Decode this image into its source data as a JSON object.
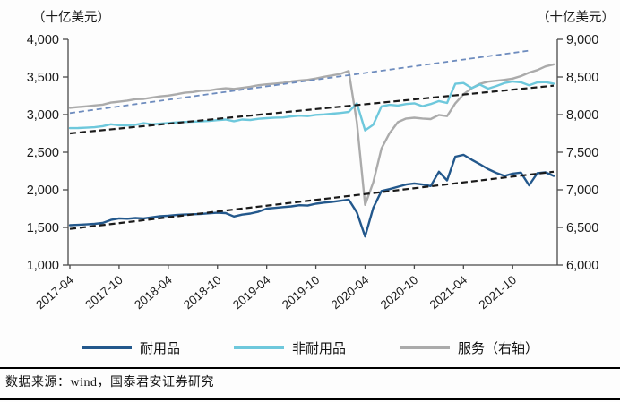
{
  "footer": {
    "source": "数据来源：wind，国泰君安证券研究"
  },
  "legend": [
    {
      "label": "耐用品",
      "color": "#23588c"
    },
    {
      "label": "非耐用品",
      "color": "#6ec8dc"
    },
    {
      "label": "服务（右轴）",
      "color": "#ababab"
    }
  ],
  "chart_data": {
    "type": "line",
    "title": "",
    "grid": false,
    "legend_position": "bottom",
    "left_axis": {
      "unit": "（十亿美元）",
      "min": 1000,
      "max": 4000,
      "ticks": [
        4000,
        3500,
        3000,
        2500,
        2000,
        1500,
        1000
      ]
    },
    "right_axis": {
      "unit": "（十亿美元）",
      "min": 6000,
      "max": 9000,
      "ticks": [
        9000,
        8500,
        8000,
        7500,
        7000,
        6500,
        6000
      ]
    },
    "x_tick_labels": [
      "2017-04",
      "2017-10",
      "2018-04",
      "2018-10",
      "2019-04",
      "2019-10",
      "2020-04",
      "2020-10",
      "2021-04",
      "2021-10"
    ],
    "x_tick_indices": [
      0,
      6,
      12,
      18,
      24,
      30,
      36,
      42,
      48,
      54
    ],
    "months": [
      "2017-04",
      "2017-05",
      "2017-06",
      "2017-07",
      "2017-08",
      "2017-09",
      "2017-10",
      "2017-11",
      "2017-12",
      "2018-01",
      "2018-02",
      "2018-03",
      "2018-04",
      "2018-05",
      "2018-06",
      "2018-07",
      "2018-08",
      "2018-09",
      "2018-10",
      "2018-11",
      "2018-12",
      "2019-01",
      "2019-02",
      "2019-03",
      "2019-04",
      "2019-05",
      "2019-06",
      "2019-07",
      "2019-08",
      "2019-09",
      "2019-10",
      "2019-11",
      "2019-12",
      "2020-01",
      "2020-02",
      "2020-03",
      "2020-04",
      "2020-05",
      "2020-06",
      "2020-07",
      "2020-08",
      "2020-09",
      "2020-10",
      "2020-11",
      "2020-12",
      "2021-01",
      "2021-02",
      "2021-03",
      "2021-04",
      "2021-05",
      "2021-06",
      "2021-07",
      "2021-08",
      "2021-09",
      "2021-10",
      "2021-11",
      "2021-12",
      "2022-01",
      "2022-02",
      "2022-03"
    ],
    "series": [
      {
        "id": "durables",
        "name": "耐用品",
        "axis": "left",
        "color": "#23588c",
        "values": [
          1530,
          1535,
          1540,
          1548,
          1560,
          1600,
          1620,
          1615,
          1625,
          1620,
          1635,
          1650,
          1655,
          1665,
          1672,
          1675,
          1680,
          1688,
          1695,
          1690,
          1645,
          1670,
          1685,
          1710,
          1750,
          1760,
          1770,
          1780,
          1795,
          1790,
          1815,
          1830,
          1840,
          1855,
          1870,
          1700,
          1380,
          1760,
          1985,
          2010,
          2040,
          2070,
          2085,
          2070,
          2050,
          2240,
          2125,
          2440,
          2465,
          2400,
          2340,
          2275,
          2225,
          2185,
          2215,
          2228,
          2060,
          2220,
          2232,
          2185
        ]
      },
      {
        "id": "nondurables",
        "name": "非耐用品",
        "axis": "left",
        "color": "#6ec8dc",
        "values": [
          2820,
          2822,
          2826,
          2832,
          2846,
          2872,
          2858,
          2856,
          2866,
          2886,
          2872,
          2880,
          2888,
          2896,
          2902,
          2906,
          2910,
          2916,
          2926,
          2934,
          2912,
          2934,
          2928,
          2944,
          2952,
          2960,
          2962,
          2976,
          2986,
          2980,
          2996,
          3002,
          3012,
          3022,
          3036,
          3150,
          2790,
          2865,
          3110,
          3130,
          3120,
          3140,
          3150,
          3112,
          3140,
          3180,
          3155,
          3410,
          3420,
          3352,
          3400,
          3345,
          3380,
          3420,
          3440,
          3430,
          3390,
          3428,
          3432,
          3412
        ]
      },
      {
        "id": "services",
        "name": "服务（右轴）",
        "axis": "right",
        "color": "#ababab",
        "values": [
          8090,
          8100,
          8110,
          8122,
          8132,
          8160,
          8172,
          8186,
          8205,
          8208,
          8225,
          8242,
          8252,
          8270,
          8290,
          8300,
          8318,
          8322,
          8338,
          8350,
          8342,
          8355,
          8370,
          8390,
          8402,
          8412,
          8422,
          8440,
          8452,
          8462,
          8480,
          8502,
          8522,
          8542,
          8580,
          7900,
          6800,
          7100,
          7550,
          7755,
          7900,
          7948,
          7958,
          7948,
          7940,
          7995,
          7980,
          8150,
          8270,
          8350,
          8410,
          8438,
          8450,
          8462,
          8478,
          8512,
          8558,
          8592,
          8640,
          8668
        ]
      }
    ],
    "trendlines": [
      {
        "id": "durables-trend",
        "series": "耐用品",
        "axis": "left",
        "color": "#1a1a1a",
        "dash": "7 4",
        "start": 1480,
        "end": 2240,
        "end_index": 59
      },
      {
        "id": "nondurables-trend",
        "series": "非耐用品",
        "axis": "left",
        "color": "#1a1a1a",
        "dash": "7 4",
        "start": 2750,
        "end": 3385,
        "end_index": 59
      },
      {
        "id": "services-trend",
        "series": "服务（右轴）",
        "axis": "right",
        "color": "#6e8cbe",
        "dash": "6 4",
        "start": 8020,
        "end": 8850,
        "end_index": 56
      }
    ]
  }
}
